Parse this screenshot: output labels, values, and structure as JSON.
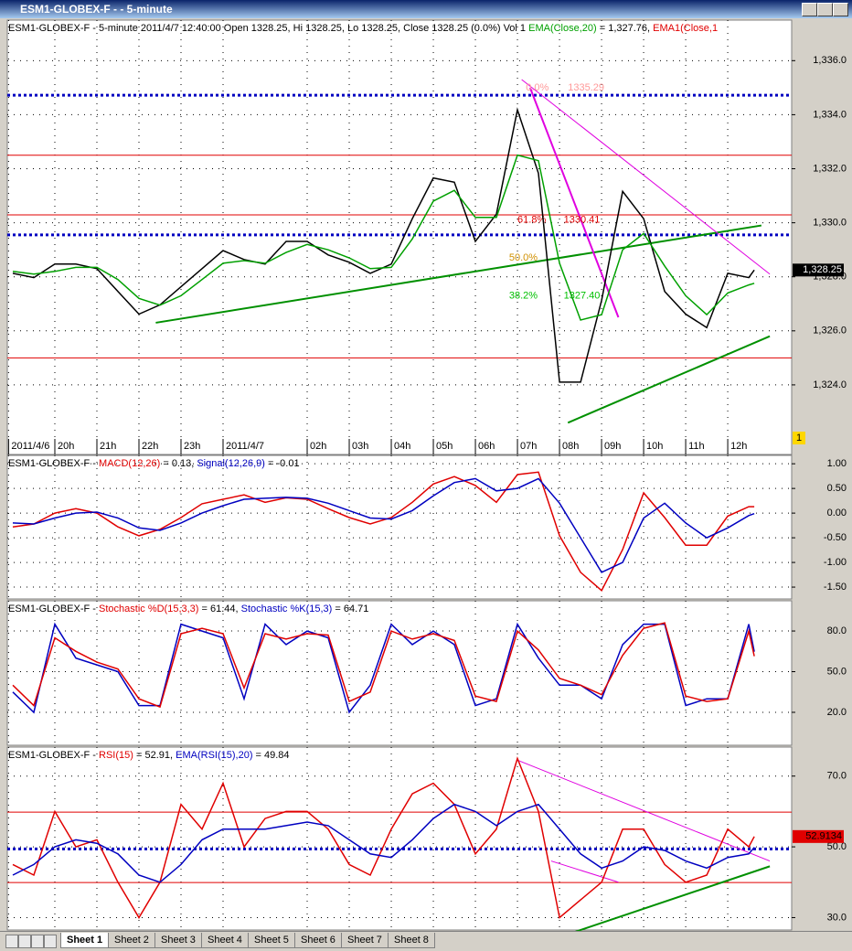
{
  "window": {
    "title": "ESM1-GLOBEX-F -  - 5-minute"
  },
  "tabs": [
    "Sheet 1",
    "Sheet 2",
    "Sheet 3",
    "Sheet 4",
    "Sheet 5",
    "Sheet 6",
    "Sheet 7",
    "Sheet 8"
  ],
  "chart_data": [
    {
      "type": "line",
      "header": [
        {
          "text": "ESM1-GLOBEX-F - 5-minute 2011/4/7 12:40:00 Open 1328.25, Hi 1328.25, Lo 1328.25, Close 1328.25 (0.0%) Vol 1 ",
          "color": "#000000"
        },
        {
          "text": "EMA(Close,20)",
          "color": "#00a000"
        },
        {
          "text": " = 1,327.76, ",
          "color": "#000000"
        },
        {
          "text": "EMA1(Close,1",
          "color": "#e00000"
        }
      ],
      "x": [
        -1,
        -0.5,
        0,
        0.5,
        1,
        1.5,
        2,
        2.5,
        3,
        3.5,
        4,
        4.5,
        5,
        5.5,
        6,
        6.5,
        7,
        7.5,
        8,
        8.5,
        9,
        9.5,
        10,
        10.5,
        11,
        11.5,
        12,
        12.5,
        13,
        13.5,
        14,
        14.5,
        15,
        15.5,
        16,
        16.5,
        16.63
      ],
      "xlim": [
        -1.13,
        17.52
      ],
      "xticks": [
        {
          "value": -1.1,
          "label": "2011/4/6"
        },
        {
          "value": 0,
          "label": "20h"
        },
        {
          "value": 1,
          "label": "21h"
        },
        {
          "value": 2,
          "label": "22h"
        },
        {
          "value": 3,
          "label": "23h"
        },
        {
          "value": 4,
          "label": "2011/4/7"
        },
        {
          "value": 6,
          "label": "02h"
        },
        {
          "value": 7,
          "label": "03h"
        },
        {
          "value": 8,
          "label": "04h"
        },
        {
          "value": 9,
          "label": "05h"
        },
        {
          "value": 10,
          "label": "06h"
        },
        {
          "value": 11,
          "label": "07h"
        },
        {
          "value": 12,
          "label": "08h"
        },
        {
          "value": 13,
          "label": "09h"
        },
        {
          "value": 14,
          "label": "10h"
        },
        {
          "value": 15,
          "label": "11h"
        },
        {
          "value": 16,
          "label": "12h"
        }
      ],
      "ylim": [
        1322,
        1337.5
      ],
      "yticks": [
        {
          "value": 1324,
          "label": "1,324.0"
        },
        {
          "value": 1326,
          "label": "1,326.0"
        },
        {
          "value": 1328,
          "label": "1,328.0"
        },
        {
          "value": 1330,
          "label": "1,330.0"
        },
        {
          "value": 1332,
          "label": "1,332.0"
        },
        {
          "value": 1334,
          "label": "1,334.0"
        },
        {
          "value": 1336,
          "label": "1,336.0"
        }
      ],
      "grid": true,
      "series": [
        {
          "color": "#000000",
          "values": [
            1328.13,
            1327.97,
            1328.47,
            1328.47,
            1328.3,
            1327.46,
            1326.62,
            1326.96,
            1327.63,
            1328.3,
            1328.97,
            1328.64,
            1328.47,
            1329.31,
            1329.31,
            1328.81,
            1328.54,
            1328.13,
            1328.47,
            1330.15,
            1331.66,
            1331.5,
            1329.31,
            1330.32,
            1334.18,
            1331.83,
            1324.1,
            1324.1,
            1327.13,
            1331.16,
            1330.15,
            1327.46,
            1326.62,
            1326.12,
            1328.13,
            1327.97,
            1328.25
          ]
        },
        {
          "color": "#00a000",
          "values": [
            1328.2,
            1328.1,
            1328.2,
            1328.35,
            1328.35,
            1327.9,
            1327.2,
            1326.95,
            1327.3,
            1327.9,
            1328.5,
            1328.6,
            1328.5,
            1328.9,
            1329.2,
            1329.0,
            1328.7,
            1328.3,
            1328.35,
            1329.4,
            1330.8,
            1331.2,
            1330.2,
            1330.2,
            1332.5,
            1332.3,
            1328.5,
            1326.4,
            1326.6,
            1329.0,
            1329.6,
            1328.4,
            1327.3,
            1326.6,
            1327.4,
            1327.7,
            1327.76
          ]
        }
      ],
      "hlines": [
        {
          "value": 1334.72,
          "color": "#0000c0",
          "dash": "3,3",
          "width": 3
        },
        {
          "value": 1329.55,
          "color": "#0000c0",
          "dash": "3,3",
          "width": 3
        },
        {
          "value": 1332.5,
          "color": "#e00000",
          "dash": "",
          "width": 1
        },
        {
          "value": 1330.29,
          "color": "#e00000",
          "dash": "",
          "width": 1
        },
        {
          "value": 1325.0,
          "color": "#e00000",
          "dash": "",
          "width": 1
        }
      ],
      "trendlines": [
        {
          "x1": 2.4,
          "y1": 1326.3,
          "x2": 16.8,
          "y2": 1329.9,
          "color": "#009000",
          "width": 2
        },
        {
          "x1": 11.1,
          "y1": 1335.3,
          "x2": 17,
          "y2": 1328.1,
          "color": "#e000e0",
          "width": 1
        },
        {
          "x1": 11.3,
          "y1": 1335.0,
          "x2": 13.4,
          "y2": 1326.5,
          "color": "#e000e0",
          "width": 2
        },
        {
          "x1": 12.2,
          "y1": 1322.6,
          "x2": 17,
          "y2": 1325.8,
          "color": "#009000",
          "width": 2
        }
      ],
      "annotations": [
        {
          "text": "0.0%",
          "x": 11.2,
          "y": 1335.0,
          "color": "#ff9999"
        },
        {
          "text": "1335.29",
          "x": 12.2,
          "y": 1335.0,
          "color": "#ff9999"
        },
        {
          "text": "61.8%",
          "x": 11.0,
          "y": 1330.1,
          "color": "#e00000"
        },
        {
          "text": "1330.41",
          "x": 12.1,
          "y": 1330.1,
          "color": "#e00000"
        },
        {
          "text": "50.0%",
          "x": 10.8,
          "y": 1328.7,
          "color": "#d09000"
        },
        {
          "text": "38.2%",
          "x": 10.8,
          "y": 1327.3,
          "color": "#00c000"
        },
        {
          "text": "1327.40",
          "x": 12.1,
          "y": 1327.3,
          "color": "#00c000"
        }
      ],
      "last_label": {
        "value": 1328.25,
        "label": "1,328.25",
        "color": "#000000",
        "text_color": "#ffffff"
      },
      "volume_label": "1"
    },
    {
      "type": "line",
      "header": [
        {
          "text": "ESM1-GLOBEX-F - ",
          "color": "#000000"
        },
        {
          "text": "MACD(12,26)",
          "color": "#e00000"
        },
        {
          "text": " = 0.13, ",
          "color": "#000000"
        },
        {
          "text": "Signal(12,26,9)",
          "color": "#0000c0"
        },
        {
          "text": " = -0.01",
          "color": "#000000"
        }
      ],
      "x": [
        -1,
        -0.5,
        0,
        0.5,
        1,
        1.5,
        2,
        2.5,
        3,
        3.5,
        4,
        4.5,
        5,
        5.5,
        6,
        6.5,
        7,
        7.5,
        8,
        8.5,
        9,
        9.5,
        10,
        10.5,
        11,
        11.5,
        12,
        12.5,
        13,
        13.5,
        14,
        14.5,
        15,
        15.5,
        16,
        16.5,
        16.63
      ],
      "xlim": [
        -1.13,
        17.52
      ],
      "ylim": [
        -1.74,
        1.17
      ],
      "yticks": [
        {
          "value": -1.5,
          "label": "-1.50"
        },
        {
          "value": -1,
          "label": "-1.00"
        },
        {
          "value": -0.5,
          "label": "-0.50"
        },
        {
          "value": 0,
          "label": "0.00"
        },
        {
          "value": 0.5,
          "label": "0.50"
        },
        {
          "value": 1,
          "label": "1.00"
        }
      ],
      "grid": true,
      "series": [
        {
          "color": "#e00000",
          "values": [
            -0.28,
            -0.22,
            0,
            0.09,
            0,
            -0.28,
            -0.46,
            -0.33,
            -0.09,
            0.19,
            0.28,
            0.37,
            0.22,
            0.31,
            0.28,
            0.09,
            -0.09,
            -0.22,
            -0.09,
            0.22,
            0.59,
            0.74,
            0.56,
            0.22,
            0.78,
            0.83,
            -0.46,
            -1.2,
            -1.57,
            -0.74,
            0.41,
            -0.09,
            -0.65,
            -0.65,
            -0.06,
            0.13,
            0.13
          ]
        },
        {
          "color": "#0000c0",
          "values": [
            -0.2,
            -0.22,
            -0.1,
            0,
            0.02,
            -0.1,
            -0.3,
            -0.35,
            -0.2,
            0,
            0.15,
            0.28,
            0.3,
            0.32,
            0.3,
            0.2,
            0.05,
            -0.1,
            -0.12,
            0.05,
            0.35,
            0.62,
            0.7,
            0.45,
            0.5,
            0.7,
            0.2,
            -0.5,
            -1.2,
            -1.0,
            -0.1,
            0.2,
            -0.2,
            -0.5,
            -0.3,
            -0.05,
            -0.01
          ]
        }
      ]
    },
    {
      "type": "line",
      "header": [
        {
          "text": "ESM1-GLOBEX-F - ",
          "color": "#000000"
        },
        {
          "text": "Stochastic %D(15,3,3)",
          "color": "#e00000"
        },
        {
          "text": " = 61.44, ",
          "color": "#000000"
        },
        {
          "text": "Stochastic %K(15,3)",
          "color": "#0000c0"
        },
        {
          "text": " = 64.71",
          "color": "#000000"
        }
      ],
      "x": [
        -1,
        -0.5,
        0,
        0.5,
        1,
        1.5,
        2,
        2.5,
        3,
        3.5,
        4,
        4.5,
        5,
        5.5,
        6,
        6.5,
        7,
        7.5,
        8,
        8.5,
        9,
        9.5,
        10,
        10.5,
        11,
        11.5,
        12,
        12.5,
        13,
        13.5,
        14,
        14.5,
        15,
        15.5,
        16,
        16.5,
        16.63
      ],
      "xlim": [
        -1.13,
        17.52
      ],
      "ylim": [
        -4.3,
        102.3
      ],
      "yticks": [
        {
          "value": 20,
          "label": "20.0"
        },
        {
          "value": 50,
          "label": "50.0"
        },
        {
          "value": 80,
          "label": "80.0"
        }
      ],
      "grid": true,
      "series": [
        {
          "color": "#0000c0",
          "values": [
            35,
            20,
            85,
            60,
            55,
            50,
            25,
            25,
            85,
            80,
            75,
            30,
            85,
            70,
            80,
            75,
            20,
            40,
            85,
            70,
            80,
            70,
            25,
            30,
            85,
            60,
            40,
            40,
            30,
            70,
            85,
            85,
            25,
            30,
            30,
            85,
            64.71
          ]
        },
        {
          "color": "#e00000",
          "values": [
            40,
            25,
            75,
            65,
            57,
            52,
            30,
            24,
            78,
            82,
            78,
            38,
            78,
            74,
            78,
            77,
            28,
            35,
            80,
            74,
            78,
            73,
            32,
            28,
            80,
            66,
            45,
            40,
            33,
            62,
            82,
            86,
            32,
            28,
            30,
            80,
            61.44
          ]
        }
      ]
    },
    {
      "type": "line",
      "header": [
        {
          "text": "ESM1-GLOBEX-F - ",
          "color": "#000000"
        },
        {
          "text": "RSI(15)",
          "color": "#e00000"
        },
        {
          "text": " = 52.91, ",
          "color": "#000000"
        },
        {
          "text": "EMA(RSI(15),20)",
          "color": "#0000c0"
        },
        {
          "text": " = 49.84",
          "color": "#000000"
        }
      ],
      "x": [
        -1,
        -0.5,
        0,
        0.5,
        1,
        1.5,
        2,
        2.5,
        3,
        3.5,
        4,
        4.5,
        5,
        5.5,
        6,
        6.5,
        7,
        7.5,
        8,
        8.5,
        9,
        9.5,
        10,
        10.5,
        11,
        11.5,
        12,
        12.5,
        13,
        13.5,
        14,
        14.5,
        15,
        15.5,
        16,
        16.5,
        16.63
      ],
      "xlim": [
        -1.13,
        17.52
      ],
      "ylim": [
        26.5,
        78.2
      ],
      "yticks": [
        {
          "value": 30,
          "label": "30.0"
        },
        {
          "value": 50,
          "label": "50.0"
        },
        {
          "value": 70,
          "label": "70.0"
        }
      ],
      "grid": true,
      "series": [
        {
          "color": "#e00000",
          "values": [
            45,
            42,
            60,
            50,
            52,
            40,
            30,
            40,
            62,
            55,
            68,
            50,
            58,
            60,
            60,
            55,
            45,
            42,
            55,
            65,
            68,
            62,
            48,
            55,
            75,
            60,
            30,
            35,
            40,
            55,
            55,
            45,
            40,
            42,
            55,
            50,
            52.91
          ]
        },
        {
          "color": "#0000c0",
          "values": [
            42,
            45,
            50,
            52,
            51,
            48,
            42,
            40,
            45,
            52,
            55,
            55,
            55,
            56,
            57,
            56,
            52,
            48,
            47,
            52,
            58,
            62,
            60,
            56,
            60,
            62,
            55,
            48,
            44,
            46,
            50,
            49,
            46,
            44,
            47,
            48,
            49.84
          ]
        }
      ],
      "hlines": [
        {
          "value": 59.8,
          "color": "#e00000",
          "dash": "",
          "width": 1
        },
        {
          "value": 39.9,
          "color": "#e00000",
          "dash": "",
          "width": 1
        },
        {
          "value": 49.4,
          "color": "#0000c0",
          "dash": "3,3",
          "width": 3
        }
      ],
      "trendlines": [
        {
          "x1": 11,
          "y1": 74.5,
          "x2": 17,
          "y2": 46,
          "color": "#e000e0",
          "width": 1
        },
        {
          "x1": 12,
          "y1": 24.5,
          "x2": 17,
          "y2": 44.5,
          "color": "#009000",
          "width": 2
        },
        {
          "x1": 11.8,
          "y1": 46,
          "x2": 13.4,
          "y2": 40,
          "color": "#e000e0",
          "width": 1
        }
      ],
      "last_label": {
        "value": 52.91,
        "label": "52.9134",
        "color": "#e00000",
        "text_color": "#000000"
      }
    }
  ]
}
